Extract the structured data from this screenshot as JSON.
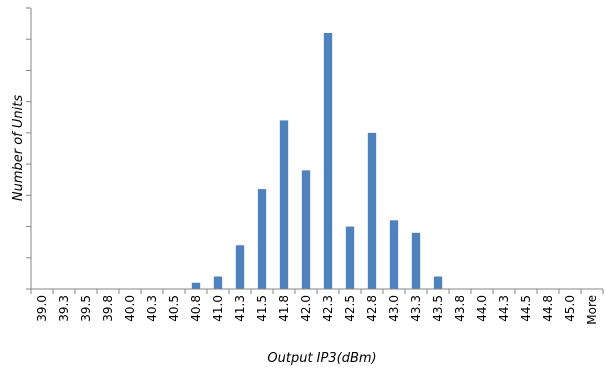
{
  "chart_data": {
    "type": "bar",
    "xlabel": "Output IP3(dBm)",
    "ylabel": "Number of Units",
    "categories": [
      "39.0",
      "39.3",
      "39.5",
      "39.8",
      "40.0",
      "40.3",
      "40.5",
      "40.8",
      "41.0",
      "41.3",
      "41.5",
      "41.8",
      "42.0",
      "42.3",
      "42.5",
      "42.8",
      "43.0",
      "43.3",
      "43.5",
      "43.8",
      "44.0",
      "44.3",
      "44.5",
      "44.8",
      "45.0",
      "More"
    ],
    "values": [
      0,
      0,
      0,
      0,
      0,
      0,
      0,
      0.2,
      0.4,
      1.4,
      3.2,
      5.4,
      3.8,
      8.2,
      2.0,
      5.0,
      2.2,
      1.8,
      0.4,
      0,
      0,
      0,
      0,
      0,
      0,
      0
    ],
    "ylim": [
      0,
      9
    ],
    "colors": {
      "bar": "#4f81bd",
      "axis": "#868686"
    },
    "grid": false,
    "legend": "none"
  }
}
